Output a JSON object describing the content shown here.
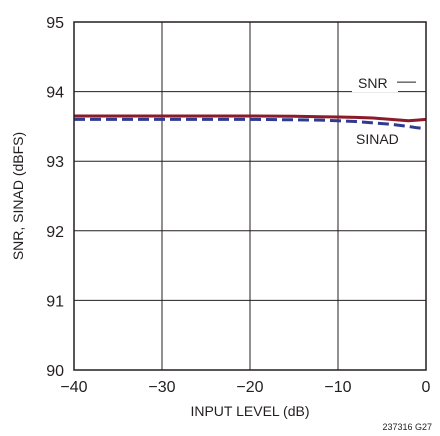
{
  "chart_data": {
    "type": "line",
    "title": "",
    "xlabel": "INPUT LEVEL (dB)",
    "ylabel": "SNR, SINAD (dBFS)",
    "xlim": [
      -40,
      0
    ],
    "ylim": [
      90,
      95
    ],
    "x_ticks": [
      -40,
      -30,
      -20,
      -10,
      0
    ],
    "x_tick_labels": [
      "−40",
      "−30",
      "−20",
      "−10",
      "0"
    ],
    "y_ticks": [
      90,
      91,
      92,
      93,
      94,
      95
    ],
    "y_tick_labels": [
      "90",
      "91",
      "92",
      "93",
      "94",
      "95"
    ],
    "grid": true,
    "series": [
      {
        "name": "SNR",
        "color": "#8b1a2b",
        "style": "solid",
        "x": [
          -40,
          -35,
          -30,
          -25,
          -20,
          -15,
          -12,
          -10,
          -8,
          -6,
          -4,
          -2,
          -1,
          0
        ],
        "y": [
          93.65,
          93.65,
          93.65,
          93.65,
          93.65,
          93.645,
          93.64,
          93.635,
          93.63,
          93.62,
          93.6,
          93.58,
          93.59,
          93.6
        ]
      },
      {
        "name": "SINAD",
        "color": "#2e3b8f",
        "style": "dashed",
        "x": [
          -40,
          -35,
          -30,
          -25,
          -20,
          -15,
          -12,
          -10,
          -8,
          -6,
          -4,
          -2,
          -1,
          0
        ],
        "y": [
          93.6,
          93.6,
          93.6,
          93.6,
          93.6,
          93.595,
          93.59,
          93.58,
          93.57,
          93.55,
          93.53,
          93.5,
          93.48,
          93.47
        ]
      }
    ],
    "annotations": [
      "SNR",
      "SINAD"
    ],
    "figure_id": "237316 G27"
  }
}
